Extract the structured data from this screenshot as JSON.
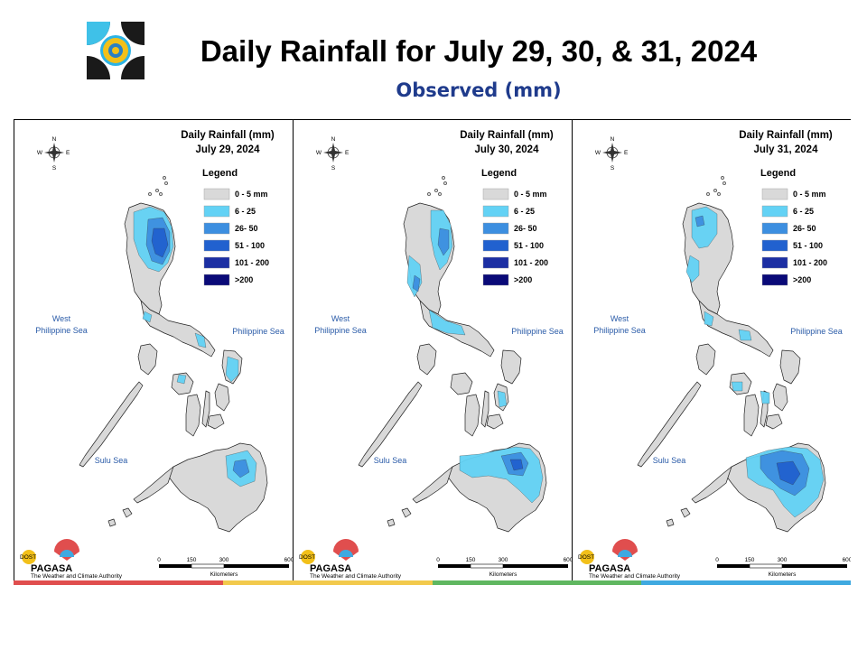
{
  "header": {
    "title": "Daily Rainfall for July 29, 30, & 31, 2024",
    "subtitle": "Observed (mm)"
  },
  "panels": [
    {
      "title_line1": "Daily Rainfall (mm)",
      "title_line2": "July 29, 2024"
    },
    {
      "title_line1": "Daily Rainfall (mm)",
      "title_line2": "July 30, 2024"
    },
    {
      "title_line1": "Daily Rainfall (mm)",
      "title_line2": "July 31, 2024"
    }
  ],
  "legend": {
    "title": "Legend",
    "classes": [
      {
        "label": "0 - 5 mm",
        "color": "#d9d9d9"
      },
      {
        "label": "6 - 25",
        "color": "#63d2f5"
      },
      {
        "label": "26- 50",
        "color": "#3d8fe0"
      },
      {
        "label": "51 - 100",
        "color": "#2161cf"
      },
      {
        "label": "101 - 200",
        "color": "#1c2fa3"
      },
      {
        "label": ">200",
        "color": "#0a0a78"
      }
    ]
  },
  "seas": {
    "west": [
      "West",
      "Philippine Sea"
    ],
    "east": "Philippine Sea",
    "sulu": "Sulu Sea"
  },
  "compass": {
    "n": "N",
    "s": "S",
    "e": "E",
    "w": "W"
  },
  "scale": {
    "ticks": [
      "0",
      "150",
      "300",
      "600"
    ],
    "unit": "Kilometers"
  },
  "pagasa": {
    "name": "PAGASA",
    "top": "DOST",
    "tagline": "The Weather and Climate Authority"
  },
  "bar_colors": [
    "#e04e4e",
    "#f2c94c",
    "#5fb760",
    "#3fa9e0"
  ]
}
